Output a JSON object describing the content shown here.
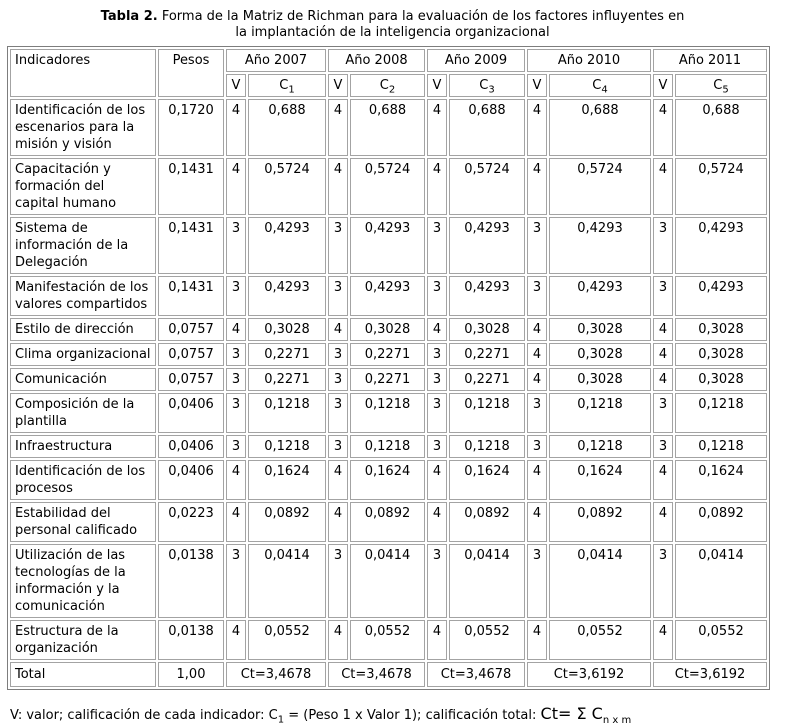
{
  "title": {
    "bold": "Tabla 2.",
    "rest": " Forma de la Matriz de Richman para la evaluación de los factores influyentes en la implantación de la inteligencia organizacional"
  },
  "table": {
    "headers": {
      "indicadores": "Indicadores",
      "pesos": "Pesos",
      "years": [
        {
          "label": "Año 2007",
          "v": "V",
          "c": "C",
          "c_sub": "1"
        },
        {
          "label": "Año 2008",
          "v": "V",
          "c": "C",
          "c_sub": "2"
        },
        {
          "label": "Año 2009",
          "v": "V",
          "c": "C",
          "c_sub": "3"
        },
        {
          "label": "Año 2010",
          "v": "V",
          "c": "C",
          "c_sub": "4"
        },
        {
          "label": "Año 2011",
          "v": "V",
          "c": "C",
          "c_sub": "5"
        }
      ]
    },
    "rows": [
      {
        "indicador": "Identificación de los escenarios para la misión y visión",
        "peso": "0,1720",
        "years": [
          [
            "4",
            "0,688"
          ],
          [
            "4",
            "0,688"
          ],
          [
            "4",
            "0,688"
          ],
          [
            "4",
            "0,688"
          ],
          [
            "4",
            "0,688"
          ]
        ]
      },
      {
        "indicador": "Capacitación y formación del capital humano",
        "peso": "0,1431",
        "years": [
          [
            "4",
            "0,5724"
          ],
          [
            "4",
            "0,5724"
          ],
          [
            "4",
            "0,5724"
          ],
          [
            "4",
            "0,5724"
          ],
          [
            "4",
            "0,5724"
          ]
        ]
      },
      {
        "indicador": "Sistema de información de la Delegación",
        "peso": "0,1431",
        "years": [
          [
            "3",
            "0,4293"
          ],
          [
            "3",
            "0,4293"
          ],
          [
            "3",
            "0,4293"
          ],
          [
            "3",
            "0,4293"
          ],
          [
            "3",
            "0,4293"
          ]
        ]
      },
      {
        "indicador": "Manifestación de los valores compartidos",
        "peso": "0,1431",
        "years": [
          [
            "3",
            "0,4293"
          ],
          [
            "3",
            "0,4293"
          ],
          [
            "3",
            "0,4293"
          ],
          [
            "3",
            "0,4293"
          ],
          [
            "3",
            "0,4293"
          ]
        ]
      },
      {
        "indicador": "Estilo de dirección",
        "peso": "0,0757",
        "years": [
          [
            "4",
            "0,3028"
          ],
          [
            "4",
            "0,3028"
          ],
          [
            "4",
            "0,3028"
          ],
          [
            "4",
            "0,3028"
          ],
          [
            "4",
            "0,3028"
          ]
        ]
      },
      {
        "indicador": "Clima organizacional",
        "peso": "0,0757",
        "years": [
          [
            "3",
            "0,2271"
          ],
          [
            "3",
            "0,2271"
          ],
          [
            "3",
            "0,2271"
          ],
          [
            "4",
            "0,3028"
          ],
          [
            "4",
            "0,3028"
          ]
        ]
      },
      {
        "indicador": "Comunicación",
        "peso": "0,0757",
        "years": [
          [
            "3",
            "0,2271"
          ],
          [
            "3",
            "0,2271"
          ],
          [
            "3",
            "0,2271"
          ],
          [
            "4",
            "0,3028"
          ],
          [
            "4",
            "0,3028"
          ]
        ]
      },
      {
        "indicador": "Composición de la plantilla",
        "peso": "0,0406",
        "years": [
          [
            "3",
            "0,1218"
          ],
          [
            "3",
            "0,1218"
          ],
          [
            "3",
            "0,1218"
          ],
          [
            "3",
            "0,1218"
          ],
          [
            "3",
            "0,1218"
          ]
        ]
      },
      {
        "indicador": "Infraestructura",
        "peso": "0,0406",
        "years": [
          [
            "3",
            "0,1218"
          ],
          [
            "3",
            "0,1218"
          ],
          [
            "3",
            "0,1218"
          ],
          [
            "3",
            "0,1218"
          ],
          [
            "3",
            "0,1218"
          ]
        ]
      },
      {
        "indicador": "Identificación de los procesos",
        "peso": "0,0406",
        "years": [
          [
            "4",
            "0,1624"
          ],
          [
            "4",
            "0,1624"
          ],
          [
            "4",
            "0,1624"
          ],
          [
            "4",
            "0,1624"
          ],
          [
            "4",
            "0,1624"
          ]
        ]
      },
      {
        "indicador": "Estabilidad del personal calificado",
        "peso": "0,0223",
        "years": [
          [
            "4",
            "0,0892"
          ],
          [
            "4",
            "0,0892"
          ],
          [
            "4",
            "0,0892"
          ],
          [
            "4",
            "0,0892"
          ],
          [
            "4",
            "0,0892"
          ]
        ]
      },
      {
        "indicador": "Utilización de las tecnologías de la información y la comunicación",
        "peso": "0,0138",
        "years": [
          [
            "3",
            "0,0414"
          ],
          [
            "3",
            "0,0414"
          ],
          [
            "3",
            "0,0414"
          ],
          [
            "3",
            "0,0414"
          ],
          [
            "3",
            "0,0414"
          ]
        ]
      },
      {
        "indicador": "Estructura de la organización",
        "peso": "0,0138",
        "years": [
          [
            "4",
            "0,0552"
          ],
          [
            "4",
            "0,0552"
          ],
          [
            "4",
            "0,0552"
          ],
          [
            "4",
            "0,0552"
          ],
          [
            "4",
            "0,0552"
          ]
        ]
      }
    ],
    "total": {
      "label": "Total",
      "peso": "1,00",
      "values": [
        "Ct=3,4678",
        "Ct=3,4678",
        "Ct=3,4678",
        "Ct=3,6192",
        "Ct=3,6192"
      ]
    }
  },
  "footnote": {
    "part1": "V: valor; calificación de cada indicador: C",
    "sub1": "1",
    "part2": " = (Peso 1 x Valor 1); calificación total: ",
    "formula": "Ct= Σ C",
    "formula_sub": "n x m"
  }
}
